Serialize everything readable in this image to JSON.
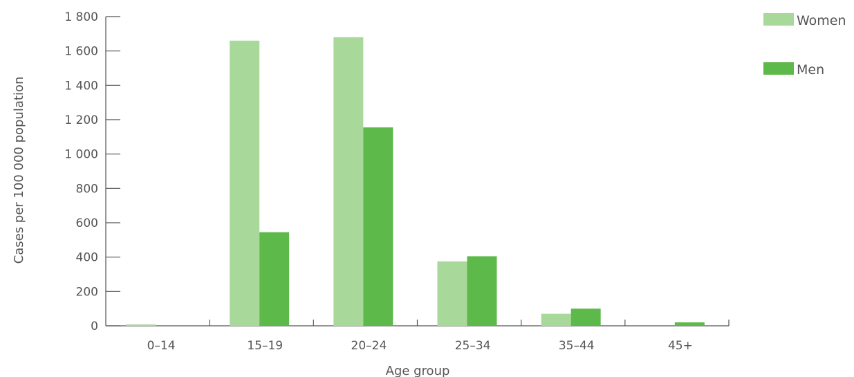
{
  "chart_data": {
    "type": "bar",
    "title": "",
    "xlabel": "Age group",
    "ylabel": "Cases per 100 000 population",
    "categories": [
      "0–14",
      "15–19",
      "20–24",
      "25–34",
      "35–44",
      "45+"
    ],
    "series": [
      {
        "name": "Women",
        "color": "#a8d89a",
        "values": [
          8,
          1660,
          1680,
          375,
          70,
          0
        ]
      },
      {
        "name": "Men",
        "color": "#5db94a",
        "values": [
          0,
          545,
          1155,
          405,
          100,
          20
        ]
      }
    ],
    "ylim": [
      0,
      1800
    ],
    "yticks": [
      0,
      200,
      400,
      600,
      800,
      1000,
      1200,
      1400,
      1600,
      1800
    ],
    "ytick_labels": [
      "0",
      "200",
      "400",
      "600",
      "800",
      "1 000",
      "1 200",
      "1 400",
      "1 600",
      "1 800"
    ],
    "grid": false,
    "legend_position": "top-right"
  }
}
